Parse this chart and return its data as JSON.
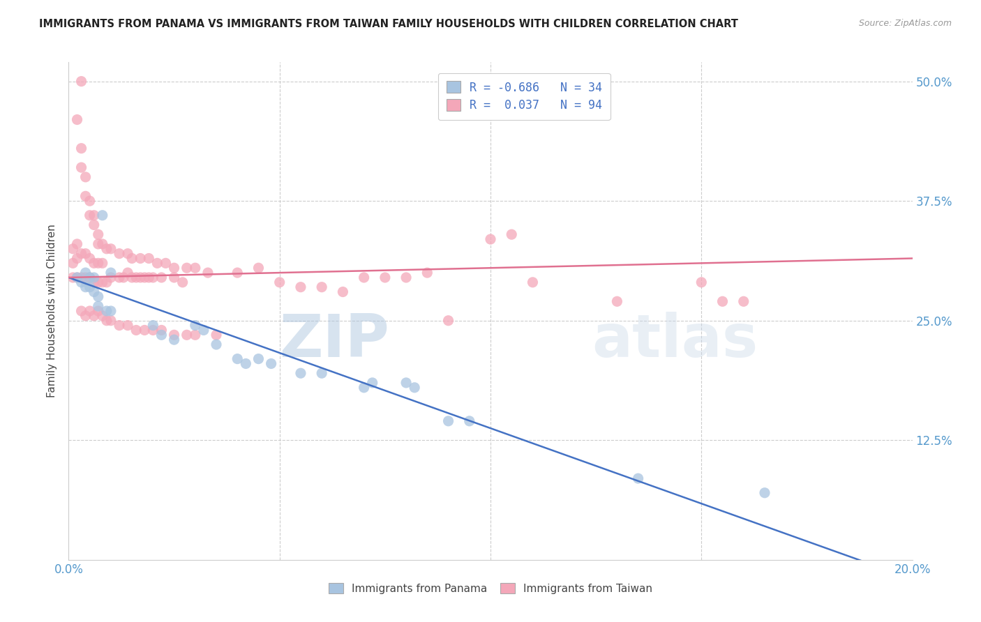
{
  "title": "IMMIGRANTS FROM PANAMA VS IMMIGRANTS FROM TAIWAN FAMILY HOUSEHOLDS WITH CHILDREN CORRELATION CHART",
  "source": "Source: ZipAtlas.com",
  "ylabel": "Family Households with Children",
  "xlim": [
    0.0,
    0.2
  ],
  "ylim": [
    0.0,
    0.52
  ],
  "xticks": [
    0.0,
    0.05,
    0.1,
    0.15,
    0.2
  ],
  "xticklabels": [
    "0.0%",
    "",
    "",
    "",
    "20.0%"
  ],
  "yticks": [
    0.0,
    0.125,
    0.25,
    0.375,
    0.5
  ],
  "yticklabels": [
    "",
    "12.5%",
    "25.0%",
    "37.5%",
    "50.0%"
  ],
  "panama_color": "#a8c4e0",
  "taiwan_color": "#f4a7b9",
  "panama_line_color": "#4472c4",
  "taiwan_line_color": "#e07090",
  "panama_R": -0.686,
  "panama_N": 34,
  "taiwan_R": 0.037,
  "taiwan_N": 94,
  "legend_label_panama": "Immigrants from Panama",
  "legend_label_taiwan": "Immigrants from Taiwan",
  "watermark": "ZIPatlas",
  "grid_color": "#cccccc",
  "panama_line": [
    [
      0.0,
      0.295
    ],
    [
      0.2,
      -0.02
    ]
  ],
  "taiwan_line": [
    [
      0.0,
      0.295
    ],
    [
      0.2,
      0.315
    ]
  ],
  "panama_scatter": [
    [
      0.002,
      0.295
    ],
    [
      0.003,
      0.29
    ],
    [
      0.004,
      0.3
    ],
    [
      0.004,
      0.285
    ],
    [
      0.005,
      0.295
    ],
    [
      0.005,
      0.285
    ],
    [
      0.006,
      0.28
    ],
    [
      0.006,
      0.295
    ],
    [
      0.007,
      0.275
    ],
    [
      0.007,
      0.265
    ],
    [
      0.008,
      0.36
    ],
    [
      0.009,
      0.26
    ],
    [
      0.01,
      0.26
    ],
    [
      0.01,
      0.3
    ],
    [
      0.02,
      0.245
    ],
    [
      0.022,
      0.235
    ],
    [
      0.025,
      0.23
    ],
    [
      0.03,
      0.245
    ],
    [
      0.032,
      0.24
    ],
    [
      0.035,
      0.225
    ],
    [
      0.04,
      0.21
    ],
    [
      0.042,
      0.205
    ],
    [
      0.045,
      0.21
    ],
    [
      0.048,
      0.205
    ],
    [
      0.055,
      0.195
    ],
    [
      0.06,
      0.195
    ],
    [
      0.07,
      0.18
    ],
    [
      0.072,
      0.185
    ],
    [
      0.08,
      0.185
    ],
    [
      0.082,
      0.18
    ],
    [
      0.09,
      0.145
    ],
    [
      0.095,
      0.145
    ],
    [
      0.135,
      0.085
    ],
    [
      0.165,
      0.07
    ]
  ],
  "taiwan_scatter": [
    [
      0.001,
      0.295
    ],
    [
      0.001,
      0.31
    ],
    [
      0.001,
      0.325
    ],
    [
      0.002,
      0.295
    ],
    [
      0.002,
      0.315
    ],
    [
      0.002,
      0.33
    ],
    [
      0.003,
      0.295
    ],
    [
      0.003,
      0.32
    ],
    [
      0.004,
      0.295
    ],
    [
      0.004,
      0.32
    ],
    [
      0.005,
      0.295
    ],
    [
      0.005,
      0.315
    ],
    [
      0.006,
      0.29
    ],
    [
      0.006,
      0.31
    ],
    [
      0.007,
      0.29
    ],
    [
      0.007,
      0.31
    ],
    [
      0.008,
      0.29
    ],
    [
      0.008,
      0.31
    ],
    [
      0.009,
      0.29
    ],
    [
      0.01,
      0.295
    ],
    [
      0.012,
      0.295
    ],
    [
      0.013,
      0.295
    ],
    [
      0.014,
      0.3
    ],
    [
      0.015,
      0.295
    ],
    [
      0.016,
      0.295
    ],
    [
      0.017,
      0.295
    ],
    [
      0.018,
      0.295
    ],
    [
      0.019,
      0.295
    ],
    [
      0.02,
      0.295
    ],
    [
      0.022,
      0.295
    ],
    [
      0.025,
      0.295
    ],
    [
      0.027,
      0.29
    ],
    [
      0.002,
      0.46
    ],
    [
      0.003,
      0.5
    ],
    [
      0.003,
      0.43
    ],
    [
      0.003,
      0.41
    ],
    [
      0.004,
      0.4
    ],
    [
      0.004,
      0.38
    ],
    [
      0.005,
      0.375
    ],
    [
      0.005,
      0.36
    ],
    [
      0.006,
      0.36
    ],
    [
      0.006,
      0.35
    ],
    [
      0.007,
      0.34
    ],
    [
      0.007,
      0.33
    ],
    [
      0.008,
      0.33
    ],
    [
      0.009,
      0.325
    ],
    [
      0.01,
      0.325
    ],
    [
      0.012,
      0.32
    ],
    [
      0.014,
      0.32
    ],
    [
      0.015,
      0.315
    ],
    [
      0.017,
      0.315
    ],
    [
      0.019,
      0.315
    ],
    [
      0.021,
      0.31
    ],
    [
      0.023,
      0.31
    ],
    [
      0.025,
      0.305
    ],
    [
      0.028,
      0.305
    ],
    [
      0.03,
      0.305
    ],
    [
      0.033,
      0.3
    ],
    [
      0.003,
      0.26
    ],
    [
      0.004,
      0.255
    ],
    [
      0.005,
      0.26
    ],
    [
      0.006,
      0.255
    ],
    [
      0.007,
      0.26
    ],
    [
      0.008,
      0.255
    ],
    [
      0.009,
      0.25
    ],
    [
      0.01,
      0.25
    ],
    [
      0.012,
      0.245
    ],
    [
      0.014,
      0.245
    ],
    [
      0.016,
      0.24
    ],
    [
      0.018,
      0.24
    ],
    [
      0.02,
      0.24
    ],
    [
      0.022,
      0.24
    ],
    [
      0.025,
      0.235
    ],
    [
      0.028,
      0.235
    ],
    [
      0.03,
      0.235
    ],
    [
      0.035,
      0.235
    ],
    [
      0.04,
      0.3
    ],
    [
      0.045,
      0.305
    ],
    [
      0.05,
      0.29
    ],
    [
      0.055,
      0.285
    ],
    [
      0.06,
      0.285
    ],
    [
      0.065,
      0.28
    ],
    [
      0.07,
      0.295
    ],
    [
      0.075,
      0.295
    ],
    [
      0.08,
      0.295
    ],
    [
      0.085,
      0.3
    ],
    [
      0.09,
      0.25
    ],
    [
      0.1,
      0.335
    ],
    [
      0.105,
      0.34
    ],
    [
      0.11,
      0.29
    ],
    [
      0.13,
      0.27
    ],
    [
      0.15,
      0.29
    ],
    [
      0.155,
      0.27
    ],
    [
      0.16,
      0.27
    ]
  ]
}
